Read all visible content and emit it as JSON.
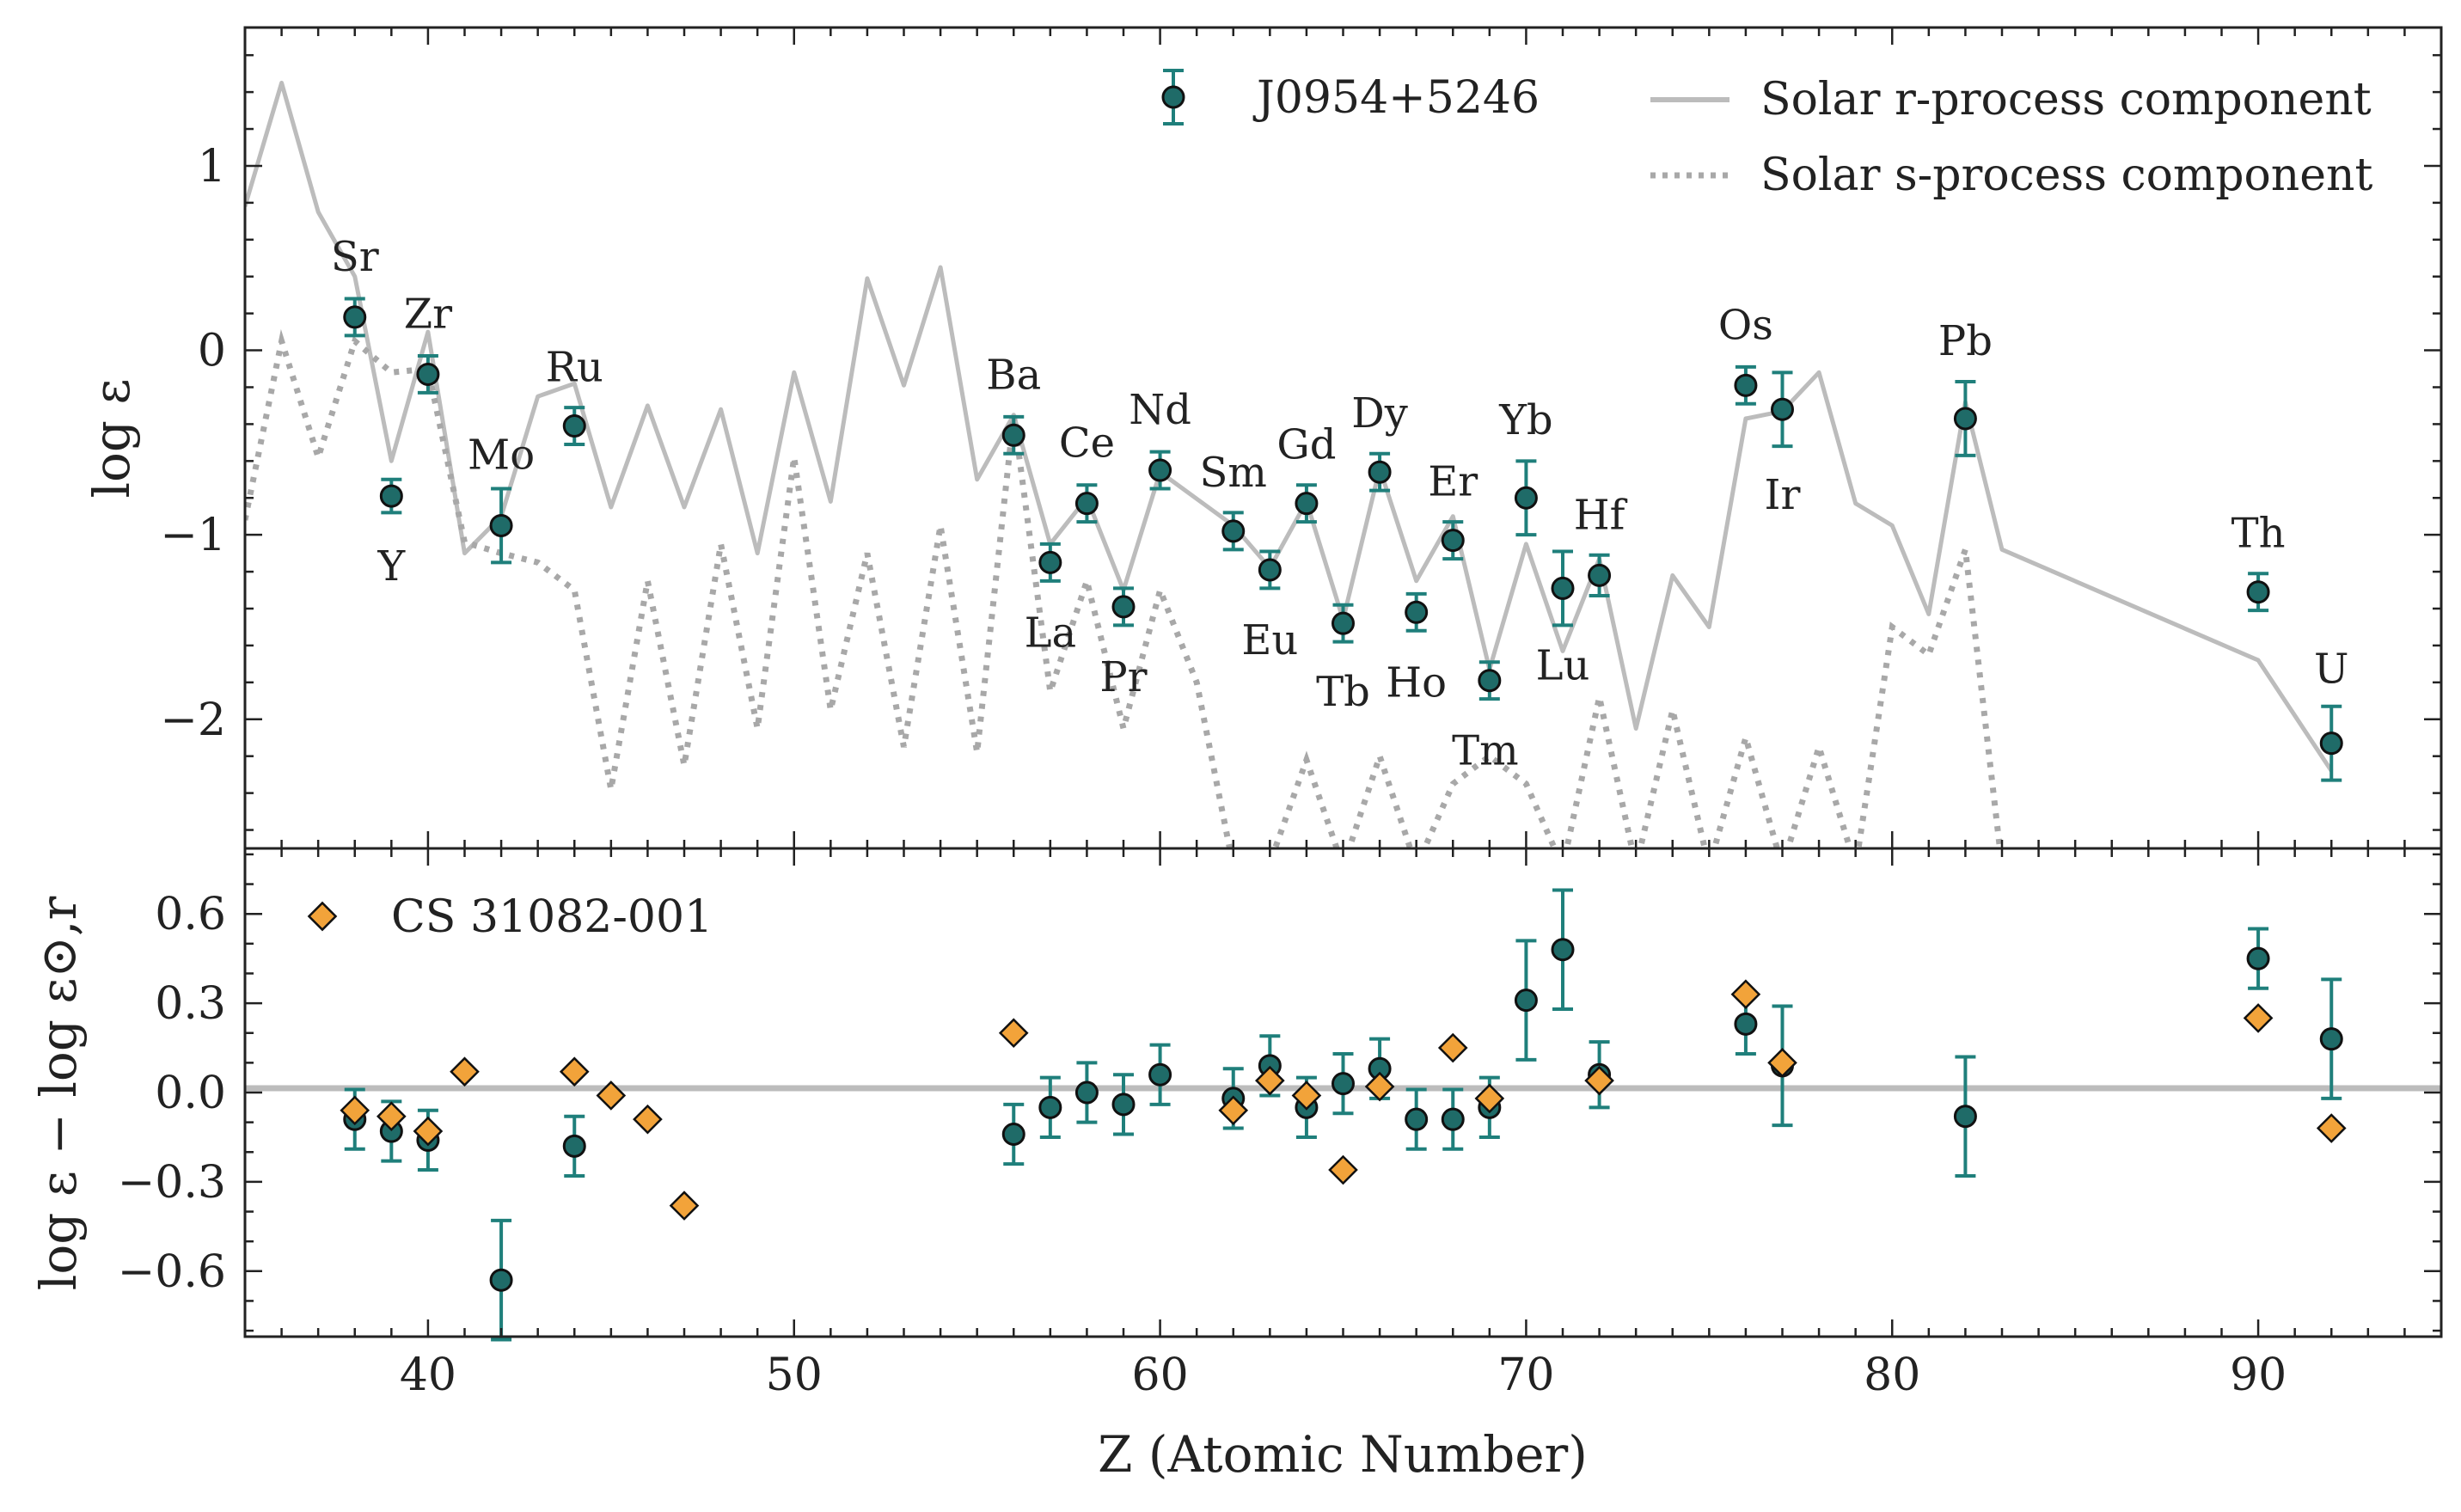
{
  "chart_data": [
    {
      "type": "scatter",
      "panel": "top",
      "ylabel": "log ε",
      "xlim": [
        35,
        95
      ],
      "ylim": [
        -2.7,
        1.75
      ],
      "yticks": [
        1,
        0,
        -1,
        -2
      ],
      "ytick_labels": [
        "1",
        "0",
        "−1",
        "−2"
      ],
      "legend": {
        "position": "top-right",
        "entries": [
          "J0954+5246",
          "Solar r-process component",
          "Solar s-process component"
        ]
      },
      "series": [
        {
          "name": "J0954+5246",
          "style": "errorbar",
          "points": [
            {
              "z": 38,
              "el": "Sr",
              "y": 0.18,
              "err": 0.1
            },
            {
              "z": 39,
              "el": "Y",
              "y": -0.79,
              "err": 0.09
            },
            {
              "z": 40,
              "el": "Zr",
              "y": -0.13,
              "err": 0.1
            },
            {
              "z": 42,
              "el": "Mo",
              "y": -0.95,
              "err": 0.2
            },
            {
              "z": 44,
              "el": "Ru",
              "y": -0.41,
              "err": 0.1
            },
            {
              "z": 56,
              "el": "Ba",
              "y": -0.46,
              "err": 0.1
            },
            {
              "z": 57,
              "el": "La",
              "y": -1.15,
              "err": 0.1
            },
            {
              "z": 58,
              "el": "Ce",
              "y": -0.83,
              "err": 0.1
            },
            {
              "z": 59,
              "el": "Pr",
              "y": -1.39,
              "err": 0.1
            },
            {
              "z": 60,
              "el": "Nd",
              "y": -0.65,
              "err": 0.1
            },
            {
              "z": 62,
              "el": "Sm",
              "y": -0.98,
              "err": 0.1
            },
            {
              "z": 63,
              "el": "Eu",
              "y": -1.19,
              "err": 0.1
            },
            {
              "z": 64,
              "el": "Gd",
              "y": -0.83,
              "err": 0.1
            },
            {
              "z": 65,
              "el": "Tb",
              "y": -1.48,
              "err": 0.1
            },
            {
              "z": 66,
              "el": "Dy",
              "y": -0.66,
              "err": 0.1
            },
            {
              "z": 67,
              "el": "Ho",
              "y": -1.42,
              "err": 0.1
            },
            {
              "z": 68,
              "el": "Er",
              "y": -1.03,
              "err": 0.1
            },
            {
              "z": 69,
              "el": "Tm",
              "y": -1.79,
              "err": 0.1
            },
            {
              "z": 70,
              "el": "Yb",
              "y": -0.8,
              "err": 0.2
            },
            {
              "z": 71,
              "el": "Lu",
              "y": -1.29,
              "err": 0.2
            },
            {
              "z": 72,
              "el": "Hf",
              "y": -1.22,
              "err": 0.11
            },
            {
              "z": 76,
              "el": "Os",
              "y": -0.19,
              "err": 0.1
            },
            {
              "z": 77,
              "el": "Ir",
              "y": -0.32,
              "err": 0.2
            },
            {
              "z": 82,
              "el": "Pb",
              "y": -0.37,
              "err": 0.2
            },
            {
              "z": 90,
              "el": "Th",
              "y": -1.31,
              "err": 0.1
            },
            {
              "z": 92,
              "el": "U",
              "y": -2.13,
              "err": 0.2
            }
          ]
        },
        {
          "name": "Solar r-process component",
          "style": "solid-line",
          "x": [
            35,
            36,
            37,
            38,
            39,
            40,
            41,
            42,
            43,
            44,
            45,
            46,
            47,
            48,
            49,
            50,
            51,
            52,
            53,
            54,
            55,
            56,
            57,
            58,
            59,
            60,
            62,
            63,
            64,
            65,
            66,
            67,
            68,
            69,
            70,
            71,
            72,
            73,
            74,
            75,
            76,
            77,
            78,
            79,
            80,
            81,
            82,
            83,
            90,
            92
          ],
          "y": [
            0.78,
            1.45,
            0.75,
            0.4,
            -0.6,
            0.1,
            -1.1,
            -0.9,
            -0.25,
            -0.18,
            -0.85,
            -0.3,
            -0.85,
            -0.32,
            -1.1,
            -0.12,
            -0.82,
            0.39,
            -0.19,
            0.45,
            -0.7,
            -0.35,
            -1.05,
            -0.8,
            -1.3,
            -0.66,
            -0.95,
            -1.18,
            -0.82,
            -1.46,
            -0.64,
            -1.25,
            -0.9,
            -1.73,
            -1.05,
            -1.63,
            -1.13,
            -2.05,
            -1.22,
            -1.5,
            -0.37,
            -0.33,
            -0.12,
            -0.83,
            -0.95,
            -1.43,
            -0.28,
            -1.08,
            -1.68,
            -2.28
          ]
        },
        {
          "name": "Solar s-process component",
          "style": "dotted-line",
          "x": [
            35,
            36,
            37,
            38,
            39,
            40,
            41,
            42,
            43,
            44,
            45,
            46,
            47,
            48,
            49,
            50,
            51,
            52,
            53,
            54,
            55,
            56,
            57,
            58,
            59,
            60,
            61,
            62,
            63,
            64,
            65,
            66,
            67,
            68,
            69,
            70,
            71,
            72,
            73,
            74,
            75,
            76,
            77,
            78,
            79,
            80,
            81,
            82,
            83
          ],
          "y": [
            -0.92,
            0.05,
            -0.58,
            0.05,
            -0.12,
            -0.1,
            -1.04,
            -1.1,
            -1.15,
            -1.3,
            -2.38,
            -1.25,
            -2.25,
            -1.05,
            -2.05,
            -0.58,
            -1.95,
            -1.1,
            -2.15,
            -0.95,
            -2.18,
            -0.35,
            -1.85,
            -1.25,
            -2.05,
            -1.3,
            -1.8,
            -2.8,
            -2.78,
            -2.22,
            -2.8,
            -2.2,
            -2.8,
            -2.35,
            -2.2,
            -2.35,
            -2.8,
            -1.88,
            -2.8,
            -1.95,
            -2.8,
            -2.1,
            -2.8,
            -2.15,
            -2.8,
            -1.5,
            -1.65,
            -1.08,
            -2.8
          ]
        }
      ]
    },
    {
      "type": "scatter",
      "panel": "bottom",
      "xlabel": "Z (Atomic Number)",
      "ylabel": "log ε − log ε⊙,r",
      "xlim": [
        35,
        95
      ],
      "ylim": [
        -0.82,
        0.82
      ],
      "xticks": [
        40,
        50,
        60,
        70,
        80,
        90
      ],
      "yticks": [
        0.6,
        0.3,
        0.0,
        -0.3,
        -0.6
      ],
      "ytick_labels": [
        "0.6",
        "0.3",
        "0.0",
        "−0.3",
        "−0.6"
      ],
      "reference_line": 0.0,
      "legend": {
        "position": "top-left",
        "entries": [
          "CS 31082-001"
        ]
      },
      "series": [
        {
          "name": "J0954+5246",
          "style": "errorbar",
          "points": [
            {
              "z": 38,
              "y": -0.09,
              "err": 0.1
            },
            {
              "z": 39,
              "y": -0.13,
              "err": 0.1
            },
            {
              "z": 40,
              "y": -0.16,
              "err": 0.1
            },
            {
              "z": 42,
              "y": -0.63,
              "err": 0.2
            },
            {
              "z": 44,
              "y": -0.18,
              "err": 0.1
            },
            {
              "z": 56,
              "y": -0.14,
              "err": 0.1
            },
            {
              "z": 57,
              "y": -0.05,
              "err": 0.1
            },
            {
              "z": 58,
              "y": 0.0,
              "err": 0.1
            },
            {
              "z": 59,
              "y": -0.04,
              "err": 0.1
            },
            {
              "z": 60,
              "y": 0.06,
              "err": 0.1
            },
            {
              "z": 62,
              "y": -0.02,
              "err": 0.1
            },
            {
              "z": 63,
              "y": 0.09,
              "err": 0.1
            },
            {
              "z": 64,
              "y": -0.05,
              "err": 0.1
            },
            {
              "z": 65,
              "y": 0.03,
              "err": 0.1
            },
            {
              "z": 66,
              "y": 0.08,
              "err": 0.1
            },
            {
              "z": 67,
              "y": -0.09,
              "err": 0.1
            },
            {
              "z": 68,
              "y": -0.09,
              "err": 0.1
            },
            {
              "z": 69,
              "y": -0.05,
              "err": 0.1
            },
            {
              "z": 70,
              "y": 0.31,
              "err": 0.2
            },
            {
              "z": 71,
              "y": 0.48,
              "err": 0.2
            },
            {
              "z": 72,
              "y": 0.06,
              "err": 0.11
            },
            {
              "z": 76,
              "y": 0.23,
              "err": 0.1
            },
            {
              "z": 77,
              "y": 0.09,
              "err": 0.2
            },
            {
              "z": 82,
              "y": -0.08,
              "err": 0.2
            },
            {
              "z": 90,
              "y": 0.45,
              "err": 0.1
            },
            {
              "z": 92,
              "y": 0.18,
              "err": 0.2
            }
          ]
        },
        {
          "name": "CS 31082-001",
          "style": "diamond",
          "points": [
            {
              "z": 38,
              "y": -0.06
            },
            {
              "z": 39,
              "y": -0.08
            },
            {
              "z": 40,
              "y": -0.13
            },
            {
              "z": 41,
              "y": 0.07
            },
            {
              "z": 44,
              "y": 0.07
            },
            {
              "z": 45,
              "y": -0.01
            },
            {
              "z": 46,
              "y": -0.09
            },
            {
              "z": 47,
              "y": -0.38
            },
            {
              "z": 56,
              "y": 0.2
            },
            {
              "z": 62,
              "y": -0.06
            },
            {
              "z": 63,
              "y": 0.04
            },
            {
              "z": 64,
              "y": -0.01
            },
            {
              "z": 65,
              "y": -0.26
            },
            {
              "z": 66,
              "y": 0.02
            },
            {
              "z": 68,
              "y": 0.15
            },
            {
              "z": 69,
              "y": -0.02
            },
            {
              "z": 72,
              "y": 0.04
            },
            {
              "z": 76,
              "y": 0.33
            },
            {
              "z": 77,
              "y": 0.1
            },
            {
              "z": 90,
              "y": 0.25
            },
            {
              "z": 92,
              "y": -0.12
            }
          ]
        }
      ]
    }
  ],
  "colors": {
    "marker_fill": "#1f6b68",
    "errorbar": "#1f7f7b",
    "diamond_fill": "#f2a33a",
    "solar_line": "#bcbcbc",
    "axis": "#222222"
  }
}
